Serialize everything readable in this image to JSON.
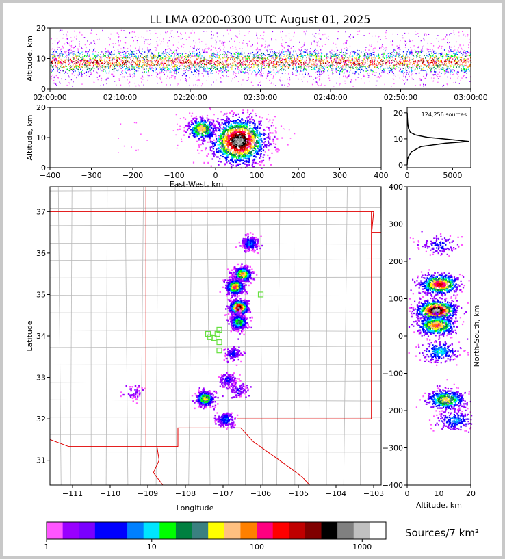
{
  "title": "LL LMA 0200-0300 UTC August 01, 2025",
  "colorbar": {
    "label": "Sources/7 km²",
    "ticks": [
      "1",
      "10",
      "100",
      "1000"
    ],
    "colors": [
      "#ff55ff",
      "#9900ff",
      "#7a00ff",
      "#0000ff",
      "#0000ff",
      "#0080ff",
      "#00e5ff",
      "#00ff00",
      "#008040",
      "#3a8080",
      "#ffff00",
      "#ffc080",
      "#ff8000",
      "#ff0080",
      "#ff0000",
      "#c00000",
      "#800000",
      "#000000",
      "#808080",
      "#c0c0c0",
      "#ffffff"
    ]
  },
  "chart_data": [
    {
      "type": "scatter",
      "name": "time-altitude",
      "ylabel": "Altitude, km",
      "ylim": [
        0,
        20
      ],
      "xlim": [
        "02:00:00",
        "03:00:00"
      ],
      "xticks": [
        "02:00:00",
        "02:10:00",
        "02:20:00",
        "02:30:00",
        "02:40:00",
        "02:50:00",
        "03:00:00"
      ],
      "yticks": [
        "0",
        "10",
        "20"
      ],
      "density_band_km": [
        6,
        13
      ],
      "peak_altitude_km": 9
    },
    {
      "type": "heatmap",
      "name": "east-west-altitude",
      "xlabel": "East-West, km",
      "ylabel": "Altitude, km",
      "xlim": [
        -400,
        400
      ],
      "ylim": [
        0,
        20
      ],
      "xticks": [
        "−400",
        "−300",
        "−200",
        "−100",
        "0",
        "100",
        "200",
        "300",
        "400"
      ],
      "yticks": [
        "0",
        "10",
        "20"
      ],
      "cores": [
        {
          "x": 55,
          "z": 9,
          "spread_x": 35,
          "spread_z": 4
        },
        {
          "x": -35,
          "z": 13,
          "spread_x": 18,
          "spread_z": 2
        }
      ]
    },
    {
      "type": "line",
      "name": "altitude-histogram",
      "annotation": "124,256 sources",
      "xlim": [
        0,
        7000
      ],
      "ylim": [
        0,
        21
      ],
      "xticks": [
        "0",
        "5000"
      ],
      "yticks": [
        "0",
        "10",
        "20"
      ],
      "points": [
        [
          0,
          0
        ],
        [
          30,
          2
        ],
        [
          120,
          3
        ],
        [
          450,
          5
        ],
        [
          1500,
          7
        ],
        [
          4200,
          8.3
        ],
        [
          6800,
          9
        ],
        [
          4800,
          9.7
        ],
        [
          2200,
          10.6
        ],
        [
          900,
          11.5
        ],
        [
          350,
          12.5
        ],
        [
          150,
          14
        ],
        [
          60,
          16
        ],
        [
          20,
          18
        ],
        [
          5,
          20
        ]
      ]
    },
    {
      "type": "heatmap",
      "name": "plan-view",
      "xlabel": "Longitude",
      "ylabel": "Latitude",
      "xlim": [
        -111.6,
        -102.8
      ],
      "ylim": [
        30.4,
        37.6
      ],
      "xticks": [
        "−111",
        "−110",
        "−109",
        "−108",
        "−107",
        "−106",
        "−105",
        "−104",
        "−103"
      ],
      "yticks": [
        "31",
        "32",
        "33",
        "34",
        "35",
        "36",
        "37"
      ],
      "clusters": [
        {
          "lon": -106.3,
          "lat": 36.25,
          "n": 30
        },
        {
          "lon": -106.5,
          "lat": 35.5,
          "n": 80
        },
        {
          "lon": -106.7,
          "lat": 35.2,
          "n": 90
        },
        {
          "lon": -106.6,
          "lat": 34.7,
          "n": 120
        },
        {
          "lon": -106.6,
          "lat": 34.35,
          "n": 60
        },
        {
          "lon": -106.75,
          "lat": 33.6,
          "n": 20
        },
        {
          "lon": -106.9,
          "lat": 32.95,
          "n": 20
        },
        {
          "lon": -106.6,
          "lat": 32.7,
          "n": 15
        },
        {
          "lon": -107.5,
          "lat": 32.5,
          "n": 70
        },
        {
          "lon": -106.95,
          "lat": 32.0,
          "n": 30
        },
        {
          "lon": -109.4,
          "lat": 32.65,
          "n": 8
        }
      ],
      "stations": [
        [
          -107.1,
          34.15
        ],
        [
          -107.15,
          34.05
        ],
        [
          -107.4,
          34.05
        ],
        [
          -107.35,
          33.97
        ],
        [
          -107.1,
          33.85
        ],
        [
          -107.1,
          33.65
        ],
        [
          -107.25,
          33.95
        ],
        [
          -106.0,
          35.0
        ]
      ]
    },
    {
      "type": "heatmap",
      "name": "altitude-north-south",
      "xlabel": "Altitude, km",
      "ylabel": "North-South, km",
      "xlim": [
        0,
        20
      ],
      "ylim": [
        -400,
        400
      ],
      "xticks": [
        "0",
        "10",
        "20"
      ],
      "yticks": [
        "−400",
        "−300",
        "−200",
        "−100",
        "0",
        "100",
        "200",
        "300",
        "400"
      ],
      "cores": [
        {
          "z": 10,
          "y": 140,
          "n": 70
        },
        {
          "z": 9,
          "y": 70,
          "n": 90
        },
        {
          "z": 9,
          "y": 30,
          "n": 60
        },
        {
          "z": 10,
          "y": 245,
          "n": 15
        },
        {
          "z": 10,
          "y": -40,
          "n": 30
        },
        {
          "z": 12,
          "y": -170,
          "n": 50
        },
        {
          "z": 15,
          "y": -225,
          "n": 25
        }
      ]
    }
  ]
}
